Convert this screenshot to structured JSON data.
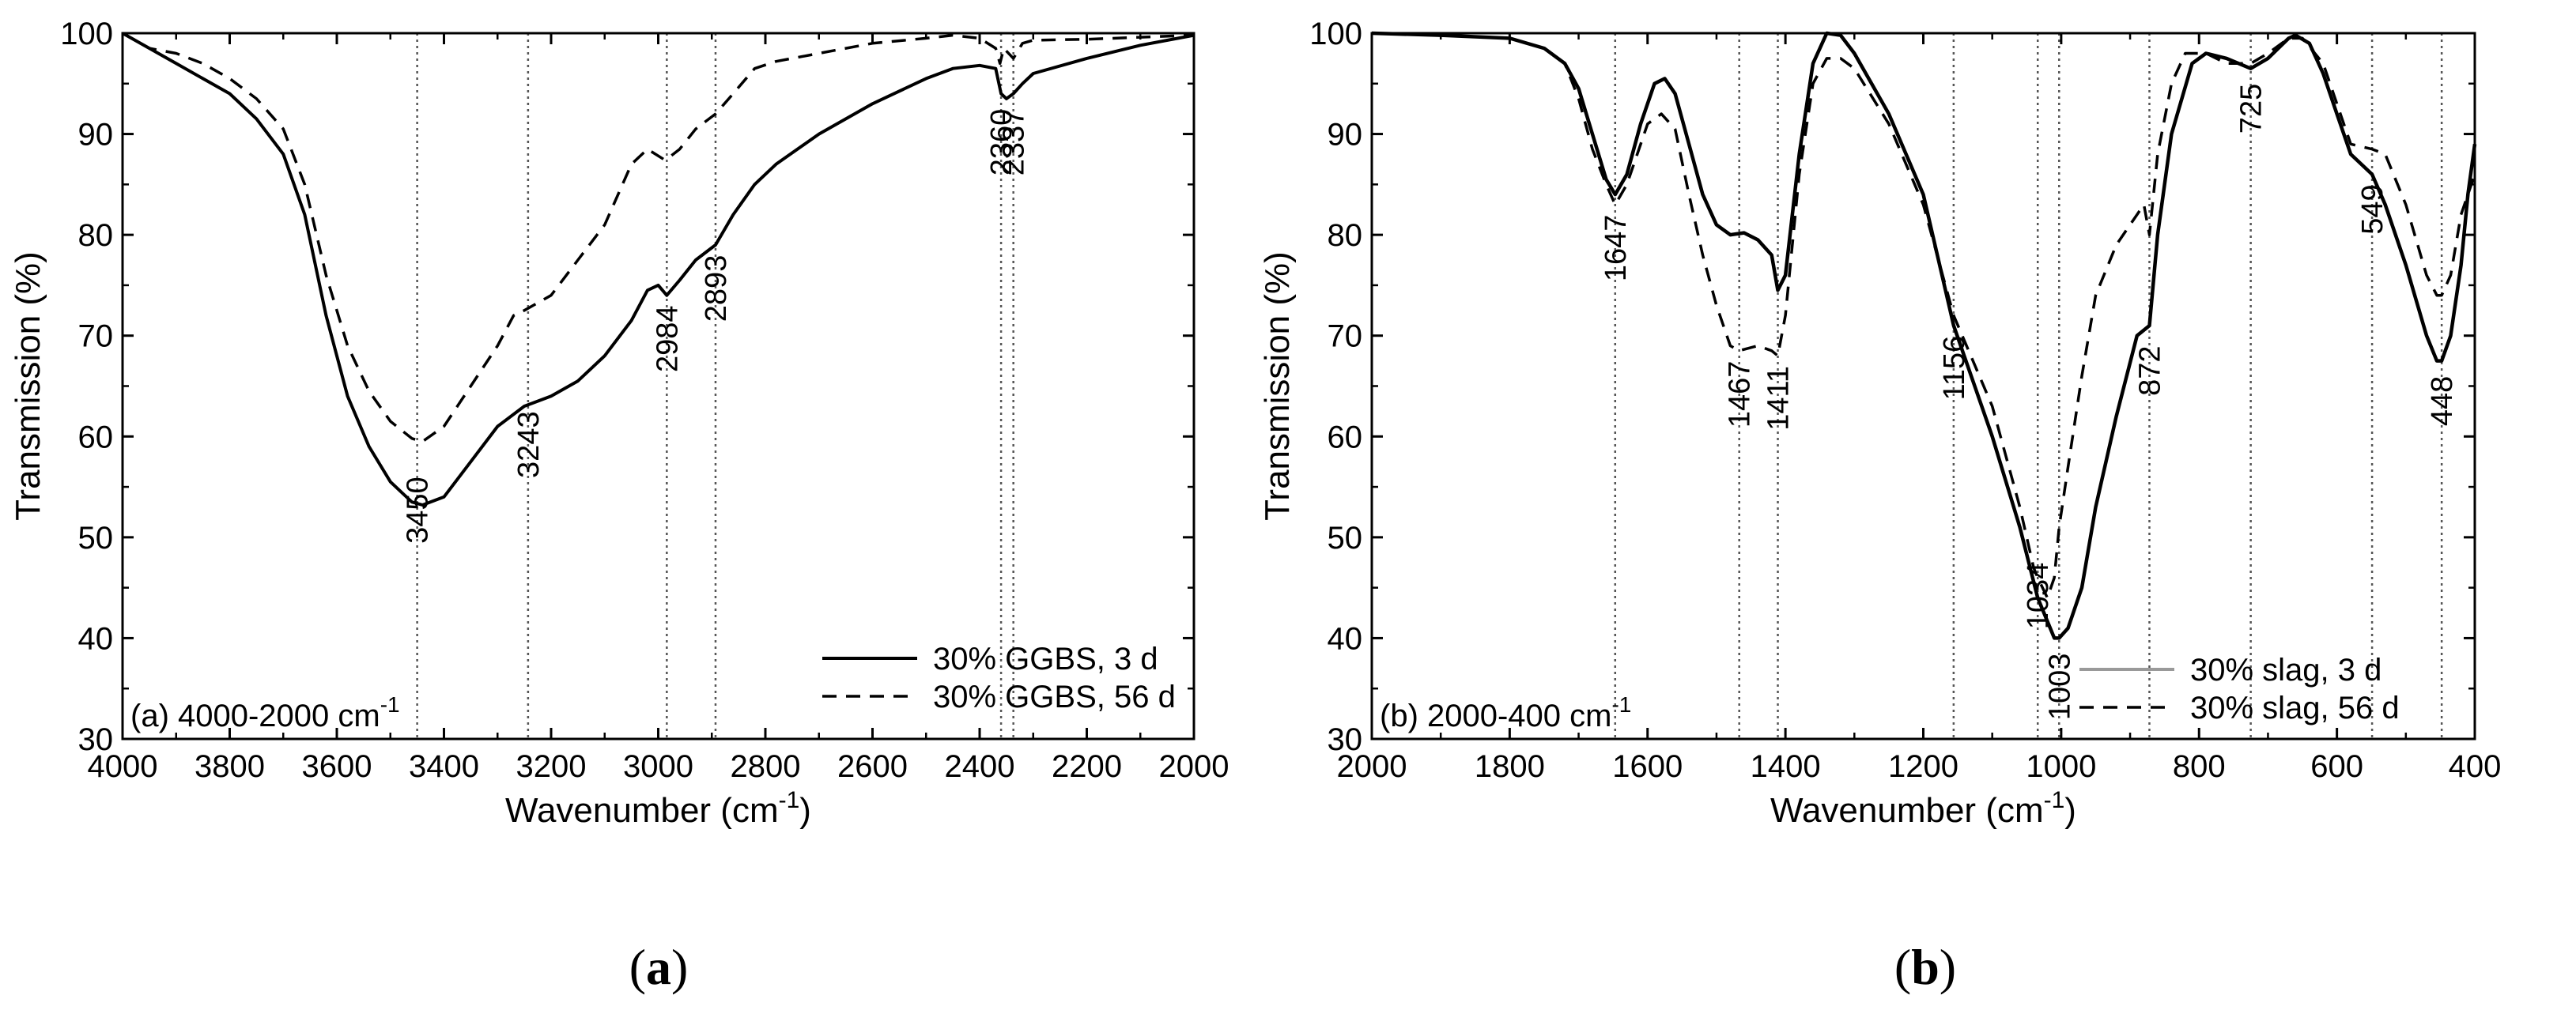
{
  "chart_data": [
    {
      "panel": "a",
      "type": "line",
      "caption": "(a)",
      "range_label": "(a) 4000-2000 cm",
      "range_sup": "-1",
      "xlabel": "Wavenumber (cm",
      "xlabel_sup": "-1",
      "xlabel_end": ")",
      "ylabel": "Transmission (%)",
      "xlim": [
        4000,
        2000
      ],
      "ylim": [
        30,
        100
      ],
      "xticks": [
        4000,
        3800,
        3600,
        3400,
        3200,
        3000,
        2800,
        2600,
        2400,
        2200,
        2000
      ],
      "yticks": [
        30,
        40,
        50,
        60,
        70,
        80,
        90,
        100
      ],
      "legend_position": "bottom-right",
      "series": [
        {
          "name": "30% GGBS, 3 d",
          "style": "solid",
          "points": [
            [
              4000,
              100
            ],
            [
              3950,
              98.5
            ],
            [
              3900,
              97
            ],
            [
              3850,
              95.5
            ],
            [
              3800,
              94
            ],
            [
              3750,
              91.5
            ],
            [
              3700,
              88
            ],
            [
              3660,
              82
            ],
            [
              3620,
              72
            ],
            [
              3580,
              64
            ],
            [
              3540,
              59
            ],
            [
              3500,
              55.5
            ],
            [
              3460,
              53.5
            ],
            [
              3440,
              53.2
            ],
            [
              3400,
              54
            ],
            [
              3350,
              57.5
            ],
            [
              3300,
              61
            ],
            [
              3250,
              63
            ],
            [
              3200,
              64
            ],
            [
              3150,
              65.5
            ],
            [
              3100,
              68
            ],
            [
              3050,
              71.5
            ],
            [
              3020,
              74.5
            ],
            [
              3000,
              75
            ],
            [
              2984,
              74
            ],
            [
              2960,
              75.5
            ],
            [
              2930,
              77.5
            ],
            [
              2893,
              79
            ],
            [
              2860,
              82
            ],
            [
              2820,
              85
            ],
            [
              2780,
              87
            ],
            [
              2700,
              90
            ],
            [
              2600,
              93
            ],
            [
              2500,
              95.5
            ],
            [
              2450,
              96.5
            ],
            [
              2400,
              96.8
            ],
            [
              2370,
              96.5
            ],
            [
              2360,
              94
            ],
            [
              2350,
              93.5
            ],
            [
              2337,
              94
            ],
            [
              2320,
              95
            ],
            [
              2300,
              96
            ],
            [
              2200,
              97.5
            ],
            [
              2100,
              98.8
            ],
            [
              2000,
              99.8
            ]
          ]
        },
        {
          "name": "30% GGBS, 56 d",
          "style": "dashed",
          "points": [
            [
              4000,
              100
            ],
            [
              3950,
              98.5
            ],
            [
              3900,
              98
            ],
            [
              3850,
              97
            ],
            [
              3800,
              95.5
            ],
            [
              3750,
              93.5
            ],
            [
              3700,
              90.5
            ],
            [
              3660,
              85
            ],
            [
              3620,
              76
            ],
            [
              3580,
              69
            ],
            [
              3540,
              64.5
            ],
            [
              3500,
              61.5
            ],
            [
              3460,
              59.8
            ],
            [
              3440,
              59.5
            ],
            [
              3400,
              61
            ],
            [
              3350,
              65
            ],
            [
              3300,
              69
            ],
            [
              3270,
              72
            ],
            [
              3250,
              72.5
            ],
            [
              3200,
              74
            ],
            [
              3150,
              77.5
            ],
            [
              3100,
              81
            ],
            [
              3050,
              87
            ],
            [
              3020,
              88.5
            ],
            [
              2990,
              87.5
            ],
            [
              2984,
              87.5
            ],
            [
              2960,
              88.5
            ],
            [
              2930,
              90.5
            ],
            [
              2893,
              92
            ],
            [
              2860,
              94
            ],
            [
              2820,
              96.5
            ],
            [
              2780,
              97.2
            ],
            [
              2700,
              98
            ],
            [
              2600,
              99
            ],
            [
              2500,
              99.5
            ],
            [
              2450,
              99.8
            ],
            [
              2400,
              99.5
            ],
            [
              2370,
              98.5
            ],
            [
              2362,
              97
            ],
            [
              2355,
              98.5
            ],
            [
              2337,
              97.5
            ],
            [
              2320,
              99
            ],
            [
              2300,
              99.3
            ],
            [
              2200,
              99.4
            ],
            [
              2100,
              99.6
            ],
            [
              2000,
              99.8
            ]
          ]
        }
      ],
      "peaks": [
        3450,
        3243,
        2984,
        2893,
        2360,
        2337
      ]
    },
    {
      "panel": "b",
      "type": "line",
      "caption": "(b)",
      "range_label": "(b) 2000-400 cm",
      "range_sup": "-1",
      "xlabel": "Wavenumber (cm",
      "xlabel_sup": "-1",
      "xlabel_end": ")",
      "ylabel": "Transmission (%)",
      "xlim": [
        2000,
        400
      ],
      "ylim": [
        30,
        100
      ],
      "xticks": [
        2000,
        1800,
        1600,
        1400,
        1200,
        1000,
        800,
        600,
        400
      ],
      "yticks": [
        30,
        40,
        50,
        60,
        70,
        80,
        90,
        100
      ],
      "legend_position": "bottom-right",
      "series": [
        {
          "name": "30% slag, 3 d",
          "style": "solid",
          "points": [
            [
              2000,
              100
            ],
            [
              1900,
              99.8
            ],
            [
              1800,
              99.5
            ],
            [
              1750,
              98.5
            ],
            [
              1720,
              97
            ],
            [
              1700,
              94.5
            ],
            [
              1680,
              90
            ],
            [
              1660,
              85.5
            ],
            [
              1647,
              84
            ],
            [
              1630,
              86
            ],
            [
              1610,
              91
            ],
            [
              1590,
              95
            ],
            [
              1575,
              95.5
            ],
            [
              1560,
              94
            ],
            [
              1540,
              89
            ],
            [
              1520,
              84
            ],
            [
              1500,
              81
            ],
            [
              1480,
              80
            ],
            [
              1460,
              80.2
            ],
            [
              1440,
              79.5
            ],
            [
              1420,
              78
            ],
            [
              1411,
              74.5
            ],
            [
              1400,
              76
            ],
            [
              1380,
              88
            ],
            [
              1360,
              97
            ],
            [
              1340,
              100
            ],
            [
              1320,
              99.8
            ],
            [
              1300,
              98
            ],
            [
              1250,
              92
            ],
            [
              1200,
              84
            ],
            [
              1156,
              71
            ],
            [
              1100,
              60
            ],
            [
              1060,
              51
            ],
            [
              1034,
              44
            ],
            [
              1010,
              40
            ],
            [
              1003,
              40
            ],
            [
              990,
              41
            ],
            [
              970,
              45
            ],
            [
              950,
              53
            ],
            [
              920,
              62
            ],
            [
              890,
              70
            ],
            [
              872,
              71
            ],
            [
              860,
              80
            ],
            [
              840,
              90
            ],
            [
              810,
              97
            ],
            [
              790,
              98
            ],
            [
              760,
              97.5
            ],
            [
              725,
              96.5
            ],
            [
              700,
              97.5
            ],
            [
              670,
              99.5
            ],
            [
              660,
              99.8
            ],
            [
              640,
              99
            ],
            [
              620,
              96
            ],
            [
              600,
              92
            ],
            [
              580,
              88
            ],
            [
              549,
              86
            ],
            [
              530,
              83
            ],
            [
              500,
              77
            ],
            [
              470,
              70
            ],
            [
              455,
              67.5
            ],
            [
              448,
              67.5
            ],
            [
              435,
              70
            ],
            [
              420,
              77
            ],
            [
              410,
              84
            ],
            [
              400,
              89
            ]
          ]
        },
        {
          "name": "30% slag, 56 d",
          "style": "dashed",
          "points": [
            [
              2000,
              100
            ],
            [
              1900,
              99.8
            ],
            [
              1800,
              99.5
            ],
            [
              1750,
              98.5
            ],
            [
              1720,
              97
            ],
            [
              1700,
              93.5
            ],
            [
              1680,
              88.5
            ],
            [
              1660,
              85
            ],
            [
              1647,
              83
            ],
            [
              1630,
              85
            ],
            [
              1600,
              91
            ],
            [
              1580,
              92
            ],
            [
              1560,
              90.5
            ],
            [
              1540,
              84
            ],
            [
              1520,
              78
            ],
            [
              1500,
              73
            ],
            [
              1480,
              69
            ],
            [
              1467,
              68.5
            ],
            [
              1440,
              69
            ],
            [
              1420,
              68.5
            ],
            [
              1411,
              68
            ],
            [
              1400,
              72
            ],
            [
              1380,
              86
            ],
            [
              1360,
              95
            ],
            [
              1340,
              97.5
            ],
            [
              1320,
              97.5
            ],
            [
              1300,
              96.5
            ],
            [
              1250,
              91
            ],
            [
              1200,
              83
            ],
            [
              1156,
              72
            ],
            [
              1100,
              63
            ],
            [
              1060,
              53
            ],
            [
              1040,
              47
            ],
            [
              1034,
              46
            ],
            [
              1020,
              44
            ],
            [
              1010,
              46
            ],
            [
              1003,
              51
            ],
            [
              990,
              57
            ],
            [
              970,
              66
            ],
            [
              950,
              74
            ],
            [
              920,
              79
            ],
            [
              890,
              82
            ],
            [
              880,
              83
            ],
            [
              872,
              80
            ],
            [
              860,
              88
            ],
            [
              840,
              95
            ],
            [
              820,
              98
            ],
            [
              790,
              98
            ],
            [
              760,
              97
            ],
            [
              725,
              97
            ],
            [
              700,
              98
            ],
            [
              670,
              99.5
            ],
            [
              650,
              99.5
            ],
            [
              620,
              97
            ],
            [
              600,
              93
            ],
            [
              580,
              89
            ],
            [
              549,
              88.5
            ],
            [
              530,
              88
            ],
            [
              500,
              83
            ],
            [
              470,
              76
            ],
            [
              455,
              74
            ],
            [
              448,
              74
            ],
            [
              435,
              76
            ],
            [
              420,
              82
            ],
            [
              400,
              86
            ]
          ]
        }
      ],
      "peaks": [
        1647,
        1467,
        1411,
        1156,
        1034,
        1003,
        872,
        725,
        549,
        448
      ]
    }
  ]
}
